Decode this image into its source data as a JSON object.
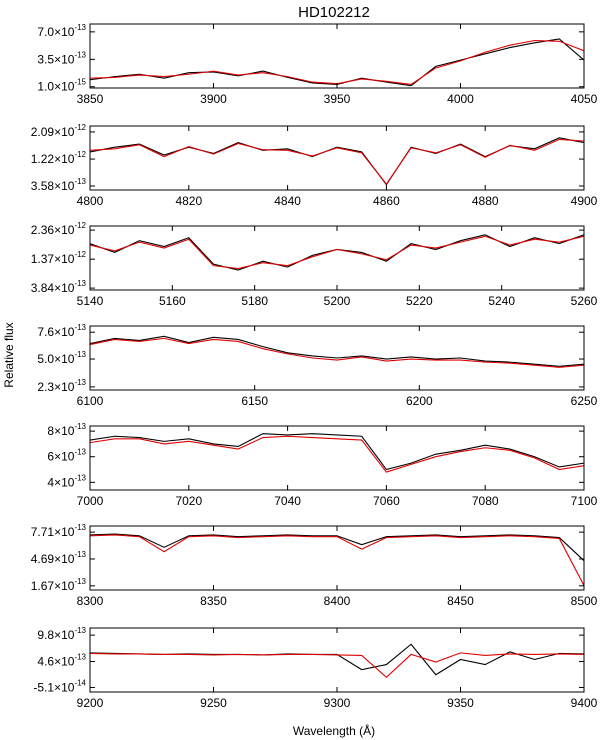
{
  "chart_data": {
    "type": "line",
    "title": "HD102212",
    "xlabel": "Wavelength (Å)",
    "ylabel": "Relative flux",
    "grid": false,
    "series_colors": [
      "#000000",
      "#e00000"
    ],
    "panels": [
      {
        "xlim": [
          3850,
          4050
        ],
        "xticks": [
          3850,
          3900,
          3950,
          4000,
          4050
        ],
        "ylim": [
          -1.5e-14,
          8e-13
        ],
        "yticks": [
          1e-15,
          3.5e-13,
          7e-13
        ],
        "ytick_labels": [
          "1.0×10",
          "3.5×10",
          "7.0×10"
        ],
        "ytick_exps": [
          "-15",
          "-13",
          "-13"
        ],
        "x": [
          3850,
          3860,
          3870,
          3880,
          3890,
          3900,
          3910,
          3920,
          3930,
          3940,
          3950,
          3960,
          3970,
          3980,
          3990,
          4000,
          4010,
          4020,
          4030,
          4040,
          4050
        ],
        "series": [
          {
            "values": [
              9e-14,
              1.3e-13,
              1.6e-13,
              1.1e-13,
              1.8e-13,
              1.9e-13,
              1.4e-13,
              2e-13,
              1.2e-13,
              5e-14,
              3e-14,
              1.1e-13,
              6e-14,
              1.5e-14,
              2.6e-13,
              3.4e-13,
              4.2e-13,
              5e-13,
              5.6e-13,
              6.1e-13,
              3.4e-13
            ]
          },
          {
            "values": [
              1.1e-13,
              1.2e-13,
              1.5e-13,
              1.3e-13,
              1.6e-13,
              2e-13,
              1.5e-13,
              1.8e-13,
              1.3e-13,
              6e-14,
              4e-14,
              1e-13,
              7e-14,
              3e-14,
              2.4e-13,
              3.3e-13,
              4.4e-13,
              5.3e-13,
              5.9e-13,
              5.8e-13,
              4.6e-13
            ]
          }
        ]
      },
      {
        "xlim": [
          4800,
          4900
        ],
        "xticks": [
          4800,
          4820,
          4840,
          4860,
          4880,
          4900
        ],
        "ylim": [
          2.3e-13,
          2.28e-12
        ],
        "yticks": [
          3.58e-13,
          1.22e-12,
          2.09e-12
        ],
        "ytick_labels": [
          "3.58×10",
          "1.22×10",
          "2.09×10"
        ],
        "ytick_exps": [
          "-13",
          "-12",
          "-12"
        ],
        "x": [
          4800,
          4805,
          4810,
          4815,
          4820,
          4825,
          4830,
          4835,
          4840,
          4845,
          4850,
          4855,
          4860,
          4865,
          4870,
          4875,
          4880,
          4885,
          4890,
          4895,
          4900
        ],
        "series": [
          {
            "values": [
              1.45e-12,
              1.6e-12,
              1.7e-12,
              1.35e-12,
              1.6e-12,
              1.4e-12,
              1.75e-12,
              1.5e-12,
              1.55e-12,
              1.3e-12,
              1.6e-12,
              1.45e-12,
              4e-13,
              1.6e-12,
              1.4e-12,
              1.7e-12,
              1.3e-12,
              1.65e-12,
              1.55e-12,
              1.9e-12,
              1.75e-12
            ]
          },
          {
            "values": [
              1.5e-12,
              1.55e-12,
              1.68e-12,
              1.3e-12,
              1.62e-12,
              1.38e-12,
              1.72e-12,
              1.52e-12,
              1.5e-12,
              1.32e-12,
              1.58e-12,
              1.42e-12,
              4.2e-13,
              1.58e-12,
              1.42e-12,
              1.68e-12,
              1.28e-12,
              1.66e-12,
              1.5e-12,
              1.85e-12,
              1.8e-12
            ]
          }
        ]
      },
      {
        "xlim": [
          5140,
          5260
        ],
        "xticks": [
          5140,
          5160,
          5180,
          5200,
          5220,
          5240,
          5260
        ],
        "ylim": [
          3.2e-13,
          2.5e-12
        ],
        "yticks": [
          3.84e-13,
          1.37e-12,
          2.36e-12
        ],
        "ytick_labels": [
          "3.84×10",
          "1.37×10",
          "2.36×10"
        ],
        "ytick_exps": [
          "-13",
          "-12",
          "-12"
        ],
        "x": [
          5140,
          5146,
          5152,
          5158,
          5164,
          5170,
          5176,
          5182,
          5188,
          5194,
          5200,
          5206,
          5212,
          5218,
          5224,
          5230,
          5236,
          5242,
          5248,
          5254,
          5260
        ],
        "series": [
          {
            "values": [
              1.9e-12,
              1.6e-12,
              2e-12,
              1.8e-12,
              2.1e-12,
              1.2e-12,
              1e-12,
              1.3e-12,
              1.1e-12,
              1.5e-12,
              1.7e-12,
              1.6e-12,
              1.3e-12,
              1.9e-12,
              1.7e-12,
              2e-12,
              2.2e-12,
              1.8e-12,
              2.1e-12,
              1.9e-12,
              2.2e-12
            ]
          },
          {
            "values": [
              1.85e-12,
              1.65e-12,
              1.95e-12,
              1.75e-12,
              2.05e-12,
              1.15e-12,
              1.05e-12,
              1.25e-12,
              1.15e-12,
              1.45e-12,
              1.7e-12,
              1.55e-12,
              1.35e-12,
              1.85e-12,
              1.75e-12,
              1.95e-12,
              2.15e-12,
              1.85e-12,
              2.05e-12,
              1.95e-12,
              2.15e-12
            ]
          }
        ]
      },
      {
        "xlim": [
          6100,
          6250
        ],
        "xticks": [
          6100,
          6150,
          6200,
          6250
        ],
        "ylim": [
          2e-13,
          8.2e-13
        ],
        "yticks": [
          2.3e-13,
          5e-13,
          7.6e-13
        ],
        "ytick_labels": [
          "2.3×10",
          "5.0×10",
          "7.6×10"
        ],
        "ytick_exps": [
          "-13",
          "-13",
          "-13"
        ],
        "x": [
          6100,
          6107.5,
          6115,
          6122.5,
          6130,
          6137.5,
          6145,
          6152.5,
          6160,
          6167.5,
          6175,
          6182.5,
          6190,
          6197.5,
          6205,
          6212.5,
          6220,
          6227.5,
          6235,
          6242.5,
          6250
        ],
        "series": [
          {
            "values": [
              6.5e-13,
              7e-13,
              6.8e-13,
              7.2e-13,
              6.6e-13,
              7.1e-13,
              6.9e-13,
              6.2e-13,
              5.6e-13,
              5.3e-13,
              5.1e-13,
              5.3e-13,
              5e-13,
              5.2e-13,
              5e-13,
              5.1e-13,
              4.8e-13,
              4.7e-13,
              4.5e-13,
              4.3e-13,
              4.5e-13
            ]
          },
          {
            "values": [
              6.4e-13,
              6.9e-13,
              6.7e-13,
              7e-13,
              6.5e-13,
              6.9e-13,
              6.7e-13,
              6e-13,
              5.5e-13,
              5.1e-13,
              4.9e-13,
              5.2e-13,
              4.8e-13,
              5e-13,
              4.9e-13,
              4.9e-13,
              4.7e-13,
              4.6e-13,
              4.4e-13,
              4.2e-13,
              4.4e-13
            ]
          }
        ]
      },
      {
        "xlim": [
          7000,
          7100
        ],
        "xticks": [
          7000,
          7020,
          7040,
          7060,
          7080,
          7100
        ],
        "ylim": [
          3.4e-13,
          8.4e-13
        ],
        "yticks": [
          4e-13,
          6e-13,
          8e-13
        ],
        "ytick_labels": [
          "4×10",
          "6×10",
          "8×10"
        ],
        "ytick_exps": [
          "-13",
          "-13",
          "-13"
        ],
        "x": [
          7000,
          7005,
          7010,
          7015,
          7020,
          7025,
          7030,
          7035,
          7040,
          7045,
          7050,
          7055,
          7060,
          7065,
          7070,
          7075,
          7080,
          7085,
          7090,
          7095,
          7100
        ],
        "series": [
          {
            "values": [
              7.3e-13,
              7.6e-13,
              7.5e-13,
              7.2e-13,
              7.4e-13,
              7e-13,
              6.8e-13,
              7.8e-13,
              7.7e-13,
              7.8e-13,
              7.7e-13,
              7.6e-13,
              5e-13,
              5.5e-13,
              6.2e-13,
              6.5e-13,
              6.9e-13,
              6.6e-13,
              6e-13,
              5.2e-13,
              5.5e-13
            ]
          },
          {
            "values": [
              7.1e-13,
              7.4e-13,
              7.4e-13,
              7e-13,
              7.2e-13,
              6.9e-13,
              6.6e-13,
              7.5e-13,
              7.6e-13,
              7.5e-13,
              7.4e-13,
              7.3e-13,
              4.8e-13,
              5.4e-13,
              6e-13,
              6.4e-13,
              6.7e-13,
              6.5e-13,
              5.9e-13,
              5e-13,
              5.3e-13
            ]
          }
        ]
      },
      {
        "xlim": [
          8300,
          8500
        ],
        "xticks": [
          8300,
          8350,
          8400,
          8450,
          8500
        ],
        "ylim": [
          1.2e-13,
          8.4e-13
        ],
        "yticks": [
          1.67e-13,
          4.69e-13,
          7.71e-13
        ],
        "ytick_labels": [
          "1.67×10",
          "4.69×10",
          "7.71×10"
        ],
        "ytick_exps": [
          "-13",
          "-13",
          "-13"
        ],
        "x": [
          8300,
          8310,
          8320,
          8330,
          8340,
          8350,
          8360,
          8370,
          8380,
          8390,
          8400,
          8410,
          8420,
          8430,
          8440,
          8450,
          8460,
          8470,
          8480,
          8490,
          8500
        ],
        "series": [
          {
            "values": [
              7.4e-13,
              7.5e-13,
              7.3e-13,
              6e-13,
              7.3e-13,
              7.4e-13,
              7.2e-13,
              7.3e-13,
              7.4e-13,
              7.3e-13,
              7.3e-13,
              6.3e-13,
              7.2e-13,
              7.3e-13,
              7.4e-13,
              7.2e-13,
              7.3e-13,
              7.4e-13,
              7.3e-13,
              7.1e-13,
              4.5e-13
            ]
          },
          {
            "values": [
              7.3e-13,
              7.4e-13,
              7.2e-13,
              5.5e-13,
              7.2e-13,
              7.3e-13,
              7.1e-13,
              7.2e-13,
              7.3e-13,
              7.2e-13,
              7.2e-13,
              5.8e-13,
              7.1e-13,
              7.2e-13,
              7.3e-13,
              7.1e-13,
              7.2e-13,
              7.3e-13,
              7.2e-13,
              7e-13,
              1.7e-13
            ]
          }
        ]
      },
      {
        "xlim": [
          9200,
          9400
        ],
        "xticks": [
          9200,
          9250,
          9300,
          9350,
          9400
        ],
        "ylim": [
          -1.4e-13,
          1.12e-12
        ],
        "yticks": [
          -5.1e-14,
          4.6e-13,
          9.8e-13
        ],
        "ytick_labels": [
          "-5.1×10",
          "4.6×10",
          "9.8×10"
        ],
        "ytick_exps": [
          "-14",
          "-13",
          "-13"
        ],
        "x": [
          9200,
          9210,
          9220,
          9230,
          9240,
          9250,
          9260,
          9270,
          9280,
          9290,
          9300,
          9310,
          9320,
          9330,
          9340,
          9350,
          9360,
          9370,
          9380,
          9390,
          9400
        ],
        "series": [
          {
            "values": [
              6.3e-13,
              6.2e-13,
              6.1e-13,
              6e-13,
              6.1e-13,
              6e-13,
              6e-13,
              5.9e-13,
              6.1e-13,
              6e-13,
              6e-13,
              3e-13,
              4e-13,
              8e-13,
              2e-13,
              5e-13,
              4e-13,
              6.5e-13,
              5e-13,
              6.2e-13,
              6.1e-13
            ]
          },
          {
            "values": [
              6.2e-13,
              6.1e-13,
              6.1e-13,
              6e-13,
              6e-13,
              5.9e-13,
              6e-13,
              5.9e-13,
              6e-13,
              6e-13,
              5.9e-13,
              5.8e-13,
              1.5e-13,
              6e-13,
              4.5e-13,
              6.3e-13,
              5.8e-13,
              6.1e-13,
              6e-13,
              6.1e-13,
              6e-13
            ]
          }
        ]
      }
    ]
  }
}
